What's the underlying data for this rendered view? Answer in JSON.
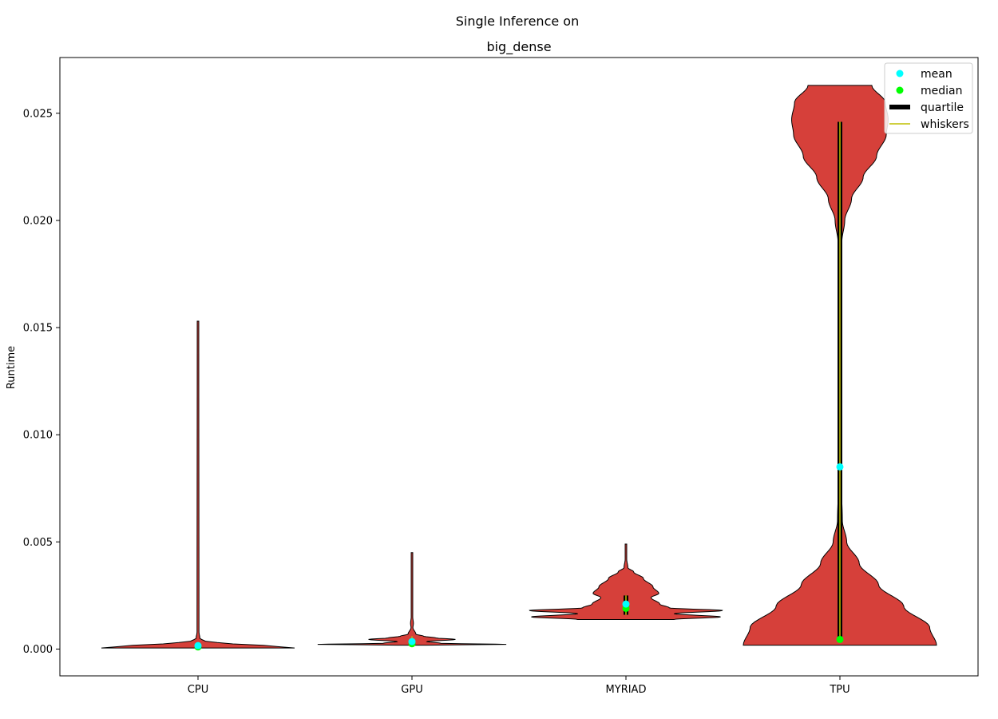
{
  "chart_data": {
    "type": "violin",
    "suptitle": "Single Inference on",
    "title": "big_dense",
    "xlabel": "",
    "ylabel": "Runtime",
    "categories": [
      "CPU",
      "GPU",
      "MYRIAD",
      "TPU"
    ],
    "ylim": [
      -0.00125,
      0.0276
    ],
    "yticks": [
      0.0,
      0.005,
      0.01,
      0.015,
      0.02,
      0.025
    ],
    "ytick_labels": [
      "0.000",
      "0.005",
      "0.010",
      "0.015",
      "0.020",
      "0.025"
    ],
    "grid": false,
    "legend": {
      "position": "top-right",
      "entries": [
        {
          "label": "mean",
          "kind": "dot",
          "color": "#00ffff"
        },
        {
          "label": "median",
          "kind": "dot",
          "color": "#00ff00"
        },
        {
          "label": "quartile",
          "kind": "thick-line",
          "color": "#000000"
        },
        {
          "label": "whiskers",
          "kind": "line",
          "color": "#bfbf00"
        }
      ]
    },
    "colors": {
      "violin_fill": "#d6403a",
      "violin_edge": "#000000",
      "mean": "#00ffff",
      "median": "#00ff00",
      "quartile": "#000000",
      "whisker": "#bfbf00"
    },
    "series": [
      {
        "category": "CPU",
        "min": 5e-05,
        "max": 0.0153,
        "q1": 7e-05,
        "q3": 0.00016,
        "median": 0.0001,
        "mean": 0.00016,
        "whisker_low": 5e-05,
        "whisker_high": 0.0003,
        "profile": [
          [
            5e-05,
            1.0
          ],
          [
            0.00015,
            0.75
          ],
          [
            0.00025,
            0.35
          ],
          [
            0.00035,
            0.08
          ],
          [
            0.0005,
            0.02
          ],
          [
            0.0008,
            0.01
          ],
          [
            0.0153,
            0.008
          ]
        ]
      },
      {
        "category": "GPU",
        "min": 0.00018,
        "max": 0.0045,
        "q1": 0.00022,
        "q3": 0.00035,
        "median": 0.00025,
        "mean": 0.00035,
        "whisker_low": 0.00018,
        "whisker_high": 0.0006,
        "profile": [
          [
            0.00018,
            0.15
          ],
          [
            0.00022,
            1.0
          ],
          [
            0.00027,
            0.3
          ],
          [
            0.00035,
            0.15
          ],
          [
            0.00045,
            0.45
          ],
          [
            0.00052,
            0.25
          ],
          [
            0.0006,
            0.12
          ],
          [
            0.0007,
            0.04
          ],
          [
            0.001,
            0.01
          ],
          [
            0.0012,
            0.015
          ],
          [
            0.0015,
            0.008
          ],
          [
            0.0045,
            0.008
          ]
        ]
      },
      {
        "category": "MYRIAD",
        "min": 0.00138,
        "max": 0.0049,
        "q1": 0.0016,
        "q3": 0.0025,
        "median": 0.0019,
        "mean": 0.0021,
        "whisker_low": 0.0016,
        "whisker_high": 0.0025,
        "profile": [
          [
            0.00138,
            0.5
          ],
          [
            0.0015,
            0.98
          ],
          [
            0.00165,
            0.5
          ],
          [
            0.0018,
            1.0
          ],
          [
            0.00192,
            0.45
          ],
          [
            0.0021,
            0.35
          ],
          [
            0.0024,
            0.26
          ],
          [
            0.0026,
            0.34
          ],
          [
            0.0029,
            0.28
          ],
          [
            0.0033,
            0.18
          ],
          [
            0.0036,
            0.08
          ],
          [
            0.0038,
            0.02
          ],
          [
            0.0042,
            0.008
          ],
          [
            0.0049,
            0.008
          ]
        ]
      },
      {
        "category": "TPU",
        "min": 0.00018,
        "max": 0.0263,
        "q1": 0.0004,
        "q3": 0.0246,
        "median": 0.00045,
        "mean": 0.0085,
        "whisker_low": 0.0004,
        "whisker_high": 0.0246,
        "profile": [
          [
            0.00018,
            1.0
          ],
          [
            0.001,
            0.93
          ],
          [
            0.002,
            0.66
          ],
          [
            0.003,
            0.4
          ],
          [
            0.004,
            0.2
          ],
          [
            0.005,
            0.07
          ],
          [
            0.006,
            0.025
          ],
          [
            0.008,
            0.012
          ],
          [
            0.012,
            0.012
          ],
          [
            0.016,
            0.012
          ],
          [
            0.019,
            0.02
          ],
          [
            0.02,
            0.05
          ],
          [
            0.021,
            0.12
          ],
          [
            0.022,
            0.24
          ],
          [
            0.023,
            0.38
          ],
          [
            0.024,
            0.48
          ],
          [
            0.0247,
            0.5
          ],
          [
            0.0255,
            0.47
          ],
          [
            0.0263,
            0.33
          ]
        ]
      }
    ]
  }
}
